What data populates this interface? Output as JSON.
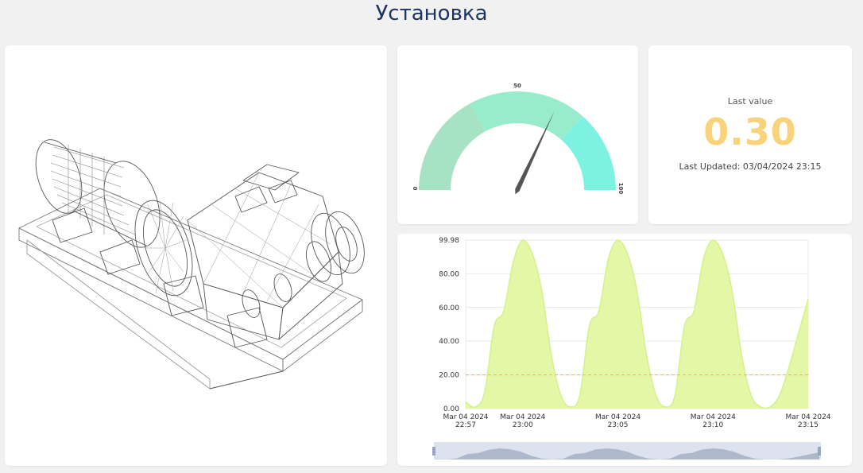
{
  "page": {
    "title": "Установка"
  },
  "gauge": {
    "min_label": "0",
    "mid_label": "50",
    "max_label": "100",
    "min": 0,
    "max": 100,
    "needle_value": 64,
    "band_colors": [
      "#a8e2c5",
      "#98ebcb",
      "#7ef2e1"
    ]
  },
  "last_value": {
    "label": "Last value",
    "value": "0.30",
    "updated": "Last Updated: 03/04/2024 23:15",
    "value_color": "#f9d27c"
  },
  "chart_data": {
    "type": "area",
    "y_ticks": [
      "99.98",
      "80.00",
      "60.00",
      "40.00",
      "20.00",
      "0.00"
    ],
    "y_tick_values": [
      99.98,
      80,
      60,
      40,
      20,
      0
    ],
    "ylim": [
      0,
      99.98
    ],
    "threshold": 20,
    "x_ticks": [
      {
        "date": "Mar 04 2024",
        "time": "22:57",
        "minute": 0
      },
      {
        "date": "Mar 04 2024",
        "time": "23:00",
        "minute": 3
      },
      {
        "date": "Mar 04 2024",
        "time": "23:05",
        "minute": 8
      },
      {
        "date": "Mar 04 2024",
        "time": "23:10",
        "minute": 13
      },
      {
        "date": "Mar 04 2024",
        "time": "23:15",
        "minute": 18
      }
    ],
    "series": [
      {
        "x_minutes": [
          0,
          0.5,
          1,
          1.5,
          2,
          2.5,
          3,
          3.5,
          4,
          4.5,
          5,
          5.5,
          6,
          6.5,
          7,
          7.5,
          8,
          8.5,
          9,
          9.5,
          10,
          10.5,
          11,
          11.5,
          12,
          12.5,
          13,
          13.5,
          14,
          14.5,
          15,
          15.5,
          16,
          16.5,
          17,
          17.5,
          18
        ],
        "values": [
          4,
          1,
          10,
          49,
          58,
          87,
          100,
          92,
          70,
          32,
          8,
          1,
          8,
          49,
          58,
          89,
          100,
          92,
          70,
          32,
          8,
          1,
          8,
          49,
          58,
          89,
          100,
          92,
          70,
          32,
          8,
          1,
          1,
          8,
          25,
          45,
          65
        ]
      }
    ],
    "colors": {
      "fill": "#e3f7a7",
      "line": "#d6f08a",
      "threshold": "#f0b545",
      "grid": "#e8e8e8"
    }
  }
}
